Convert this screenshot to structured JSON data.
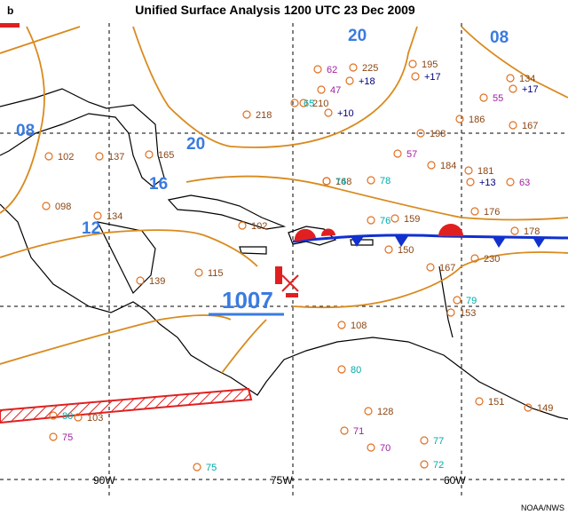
{
  "header": {
    "panel": "b",
    "title": "Unified Surface Analysis 1200 UTC 23 Dec 2009"
  },
  "isobar_labels": [
    "20",
    "08",
    "08",
    "20",
    "16",
    "12"
  ],
  "low": {
    "pressure": "1007"
  },
  "meridians": [
    "90W",
    "75W",
    "60W"
  ],
  "credit": "NOAA/NWS",
  "stations": [
    {
      "text": "225"
    },
    {
      "text": "195"
    },
    {
      "text": "62"
    },
    {
      "text": "+18"
    },
    {
      "text": "+17"
    },
    {
      "text": "47"
    },
    {
      "text": "210"
    },
    {
      "text": "+10"
    },
    {
      "text": "218"
    },
    {
      "text": "198"
    },
    {
      "text": "186"
    },
    {
      "text": "167"
    },
    {
      "text": "168"
    },
    {
      "text": "184"
    },
    {
      "text": "181"
    },
    {
      "text": "+13"
    },
    {
      "text": "159"
    },
    {
      "text": "176"
    },
    {
      "text": "178"
    },
    {
      "text": "230"
    },
    {
      "text": "150"
    },
    {
      "text": "167"
    },
    {
      "text": "153"
    },
    {
      "text": "108"
    },
    {
      "text": "128"
    },
    {
      "text": "151"
    },
    {
      "text": "149"
    },
    {
      "text": "103"
    },
    {
      "text": "139"
    },
    {
      "text": "115"
    },
    {
      "text": "102"
    },
    {
      "text": "137"
    },
    {
      "text": "165"
    },
    {
      "text": "098"
    },
    {
      "text": "134"
    },
    {
      "text": "102"
    },
    {
      "text": "79"
    },
    {
      "text": "74"
    },
    {
      "text": "78"
    },
    {
      "text": "76"
    },
    {
      "text": "80"
    },
    {
      "text": "77"
    },
    {
      "text": "72"
    },
    {
      "text": "75"
    },
    {
      "text": "75"
    },
    {
      "text": "80"
    },
    {
      "text": "71"
    },
    {
      "text": "70"
    },
    {
      "text": "65"
    },
    {
      "text": "57"
    },
    {
      "text": "63"
    },
    {
      "text": "55"
    },
    {
      "text": "134"
    },
    {
      "text": "+17"
    }
  ]
}
